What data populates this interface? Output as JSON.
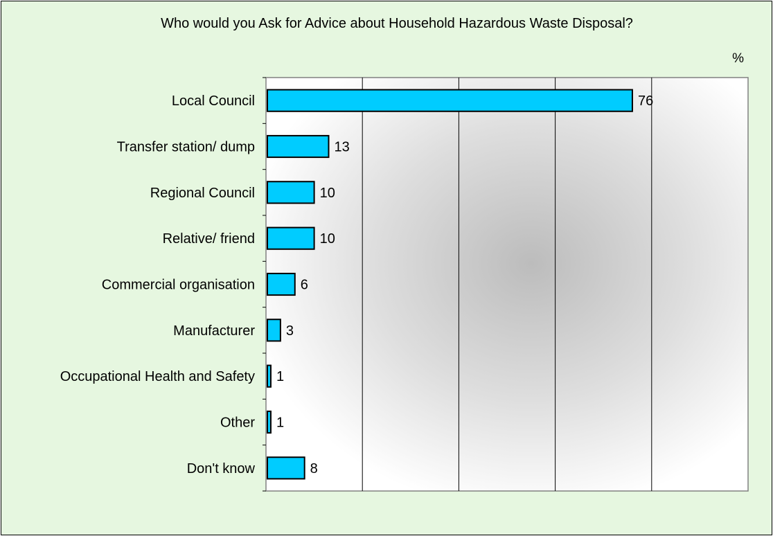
{
  "chart_data": {
    "type": "bar",
    "orientation": "horizontal",
    "title": "Who would you Ask for Advice about Household Hazardous Waste Disposal?",
    "unit_label": "%",
    "categories": [
      "Local Council",
      "Transfer station/ dump",
      "Regional Council",
      "Relative/ friend",
      "Commercial organisation",
      "Manufacturer",
      "Occupational Health and Safety",
      "Other",
      "Don't know"
    ],
    "values": [
      76,
      13,
      10,
      10,
      6,
      3,
      1,
      1,
      8
    ],
    "xlim": [
      0,
      100
    ],
    "grid": true,
    "bar_color": "#00ccff"
  }
}
